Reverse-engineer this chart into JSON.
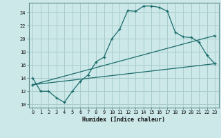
{
  "xlabel": "Humidex (Indice chaleur)",
  "bg_color": "#cce8e8",
  "grid_color": "#aacccc",
  "line_color": "#1a6b6b",
  "xlim": [
    -0.5,
    23.5
  ],
  "ylim": [
    9.5,
    25.5
  ],
  "xticks": [
    0,
    1,
    2,
    3,
    4,
    5,
    6,
    7,
    8,
    9,
    10,
    11,
    12,
    13,
    14,
    15,
    16,
    17,
    18,
    19,
    20,
    21,
    22,
    23
  ],
  "yticks": [
    10,
    12,
    14,
    16,
    18,
    20,
    22,
    24
  ],
  "line1_x": [
    0,
    1,
    2,
    3,
    4,
    5,
    6,
    7,
    8,
    9,
    10,
    11,
    12,
    13,
    14,
    15,
    16,
    17,
    18,
    19,
    20,
    21,
    22,
    23
  ],
  "line1_y": [
    14.0,
    12.0,
    12.0,
    11.0,
    10.3,
    12.0,
    13.5,
    14.5,
    16.5,
    17.2,
    20.0,
    21.5,
    24.3,
    24.2,
    25.0,
    25.0,
    24.8,
    24.2,
    21.0,
    20.3,
    20.2,
    19.5,
    17.5,
    16.2
  ],
  "line2_x": [
    0,
    23
  ],
  "line2_y": [
    13.0,
    16.2
  ],
  "line3_x": [
    0,
    23
  ],
  "line3_y": [
    13.0,
    20.5
  ],
  "marker": "+"
}
